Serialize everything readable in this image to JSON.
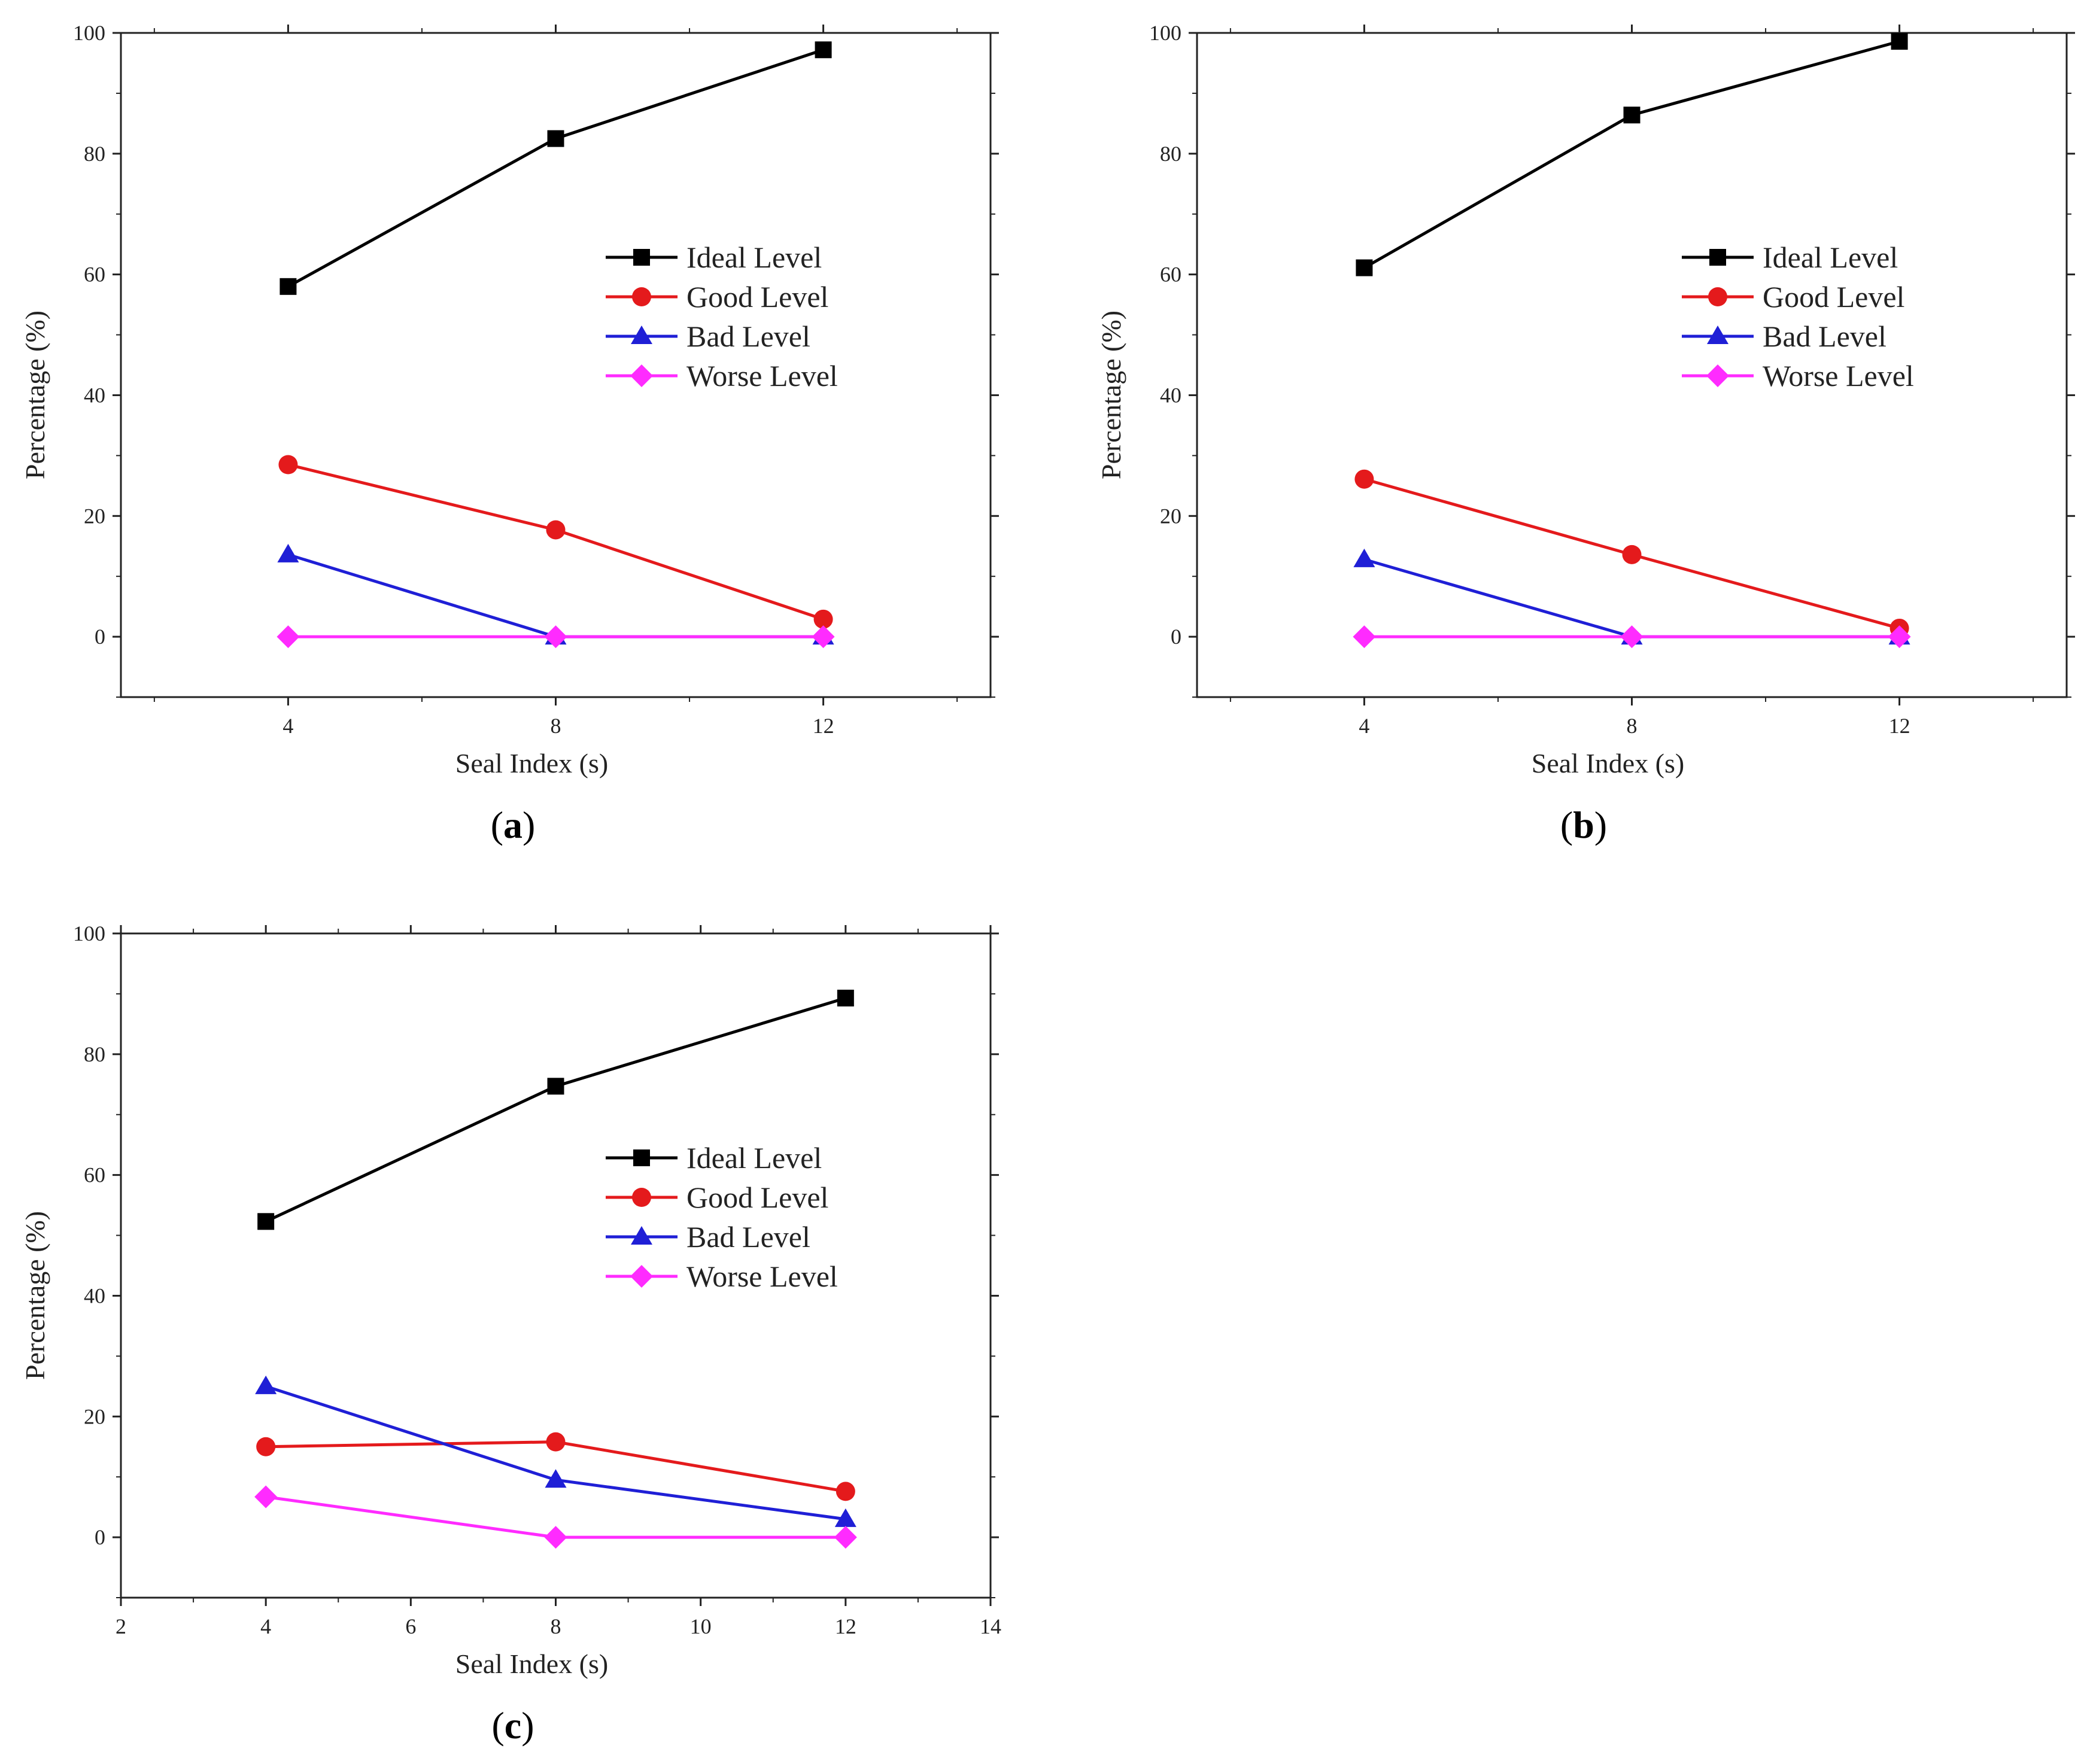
{
  "colors": {
    "ideal": "#000000",
    "good": "#e41a1c",
    "bad": "#1f1fd6",
    "worse": "#ff2bff",
    "axis": "#222222"
  },
  "chart_data": [
    {
      "type": "line",
      "panel_label": "a",
      "xlabel": "Seal Index (s)",
      "ylabel": "Percentage (%)",
      "xlim": [
        1.5,
        14.5
      ],
      "ylim": [
        -10,
        100
      ],
      "xticks": [
        4,
        8,
        12
      ],
      "yticks": [
        0,
        20,
        40,
        60,
        80,
        100
      ],
      "legend_position": "center-right",
      "x": [
        4,
        8,
        12
      ],
      "series": [
        {
          "name": "Ideal Level",
          "marker": "square",
          "color_key": "ideal",
          "values": [
            58,
            82.5,
            97.2
          ]
        },
        {
          "name": "Good Level",
          "marker": "circle",
          "color_key": "good",
          "values": [
            28.5,
            17.7,
            2.9
          ]
        },
        {
          "name": "Bad Level",
          "marker": "triangle",
          "color_key": "bad",
          "values": [
            13.6,
            0,
            0
          ]
        },
        {
          "name": "Worse Level",
          "marker": "diamond",
          "color_key": "worse",
          "values": [
            0,
            0,
            0
          ]
        }
      ]
    },
    {
      "type": "line",
      "panel_label": "b",
      "xlabel": "Seal Index (s)",
      "ylabel": "Percentage (%)",
      "xlim": [
        1.5,
        14.5
      ],
      "ylim": [
        -10,
        100
      ],
      "xticks": [
        4,
        8,
        12
      ],
      "yticks": [
        0,
        20,
        40,
        60,
        80,
        100
      ],
      "legend_position": "center-right",
      "x": [
        4,
        8,
        12
      ],
      "series": [
        {
          "name": "Ideal Level",
          "marker": "square",
          "color_key": "ideal",
          "values": [
            61.1,
            86.4,
            98.6
          ]
        },
        {
          "name": "Good Level",
          "marker": "circle",
          "color_key": "good",
          "values": [
            26.1,
            13.6,
            1.4
          ]
        },
        {
          "name": "Bad Level",
          "marker": "triangle",
          "color_key": "bad",
          "values": [
            12.8,
            0,
            0
          ]
        },
        {
          "name": "Worse Level",
          "marker": "diamond",
          "color_key": "worse",
          "values": [
            0,
            0,
            0
          ]
        }
      ]
    },
    {
      "type": "line",
      "panel_label": "c",
      "xlabel": "Seal Index (s)",
      "ylabel": "Percentage (%)",
      "xlim": [
        2,
        14
      ],
      "ylim": [
        -10,
        100
      ],
      "xticks": [
        2,
        4,
        6,
        8,
        10,
        12,
        14
      ],
      "yticks": [
        0,
        20,
        40,
        60,
        80,
        100
      ],
      "legend_position": "center-right",
      "x": [
        4,
        8,
        12
      ],
      "series": [
        {
          "name": "Ideal Level",
          "marker": "square",
          "color_key": "ideal",
          "values": [
            52.3,
            74.7,
            89.3
          ]
        },
        {
          "name": "Good Level",
          "marker": "circle",
          "color_key": "good",
          "values": [
            15,
            15.8,
            7.6
          ]
        },
        {
          "name": "Bad Level",
          "marker": "triangle",
          "color_key": "bad",
          "values": [
            25,
            9.5,
            3
          ]
        },
        {
          "name": "Worse Level",
          "marker": "diamond",
          "color_key": "worse",
          "values": [
            6.7,
            0,
            0
          ]
        }
      ]
    }
  ]
}
